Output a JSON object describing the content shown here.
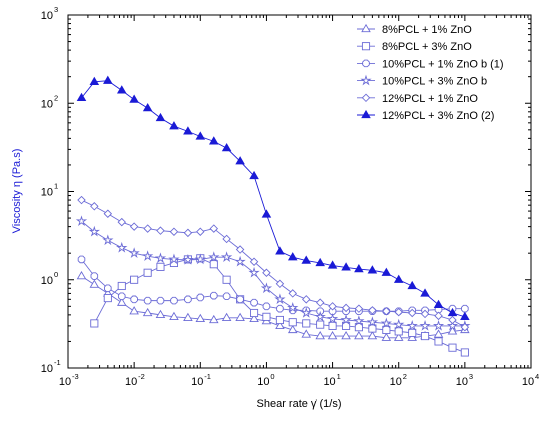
{
  "chart_data": {
    "type": "line",
    "xlabel": "Shear rate  γ̇  (1/s)",
    "ylabel": "Viscosity  η  (Pa.s)",
    "x_scale": "log",
    "y_scale": "log",
    "xlim": [
      0.001,
      10000
    ],
    "ylim": [
      0.1,
      1000
    ],
    "x_ticks": [
      {
        "value": 0.001,
        "base": "10",
        "exp": "-3"
      },
      {
        "value": 0.01,
        "base": "10",
        "exp": "-2"
      },
      {
        "value": 0.1,
        "base": "10",
        "exp": "-1"
      },
      {
        "value": 1,
        "base": "10",
        "exp": "0"
      },
      {
        "value": 10,
        "base": "10",
        "exp": "1"
      },
      {
        "value": 100,
        "base": "10",
        "exp": "2"
      },
      {
        "value": 1000,
        "base": "10",
        "exp": "3"
      },
      {
        "value": 10000,
        "base": "10",
        "exp": "4"
      }
    ],
    "y_ticks": [
      {
        "value": 0.1,
        "base": "10",
        "exp": "-1"
      },
      {
        "value": 1,
        "base": "10",
        "exp": "0"
      },
      {
        "value": 10,
        "base": "10",
        "exp": "1"
      },
      {
        "value": 100,
        "base": "10",
        "exp": "2"
      },
      {
        "value": 1000,
        "base": "10",
        "exp": "3"
      }
    ],
    "grid": false,
    "legend_position": "top-right",
    "series": [
      {
        "name": "8%PCL + 1% ZnO",
        "marker": "triangle-open",
        "color": "#6b6bd6",
        "x": [
          0.0016,
          0.0025,
          0.004,
          0.0065,
          0.01,
          0.016,
          0.025,
          0.04,
          0.065,
          0.1,
          0.16,
          0.25,
          0.4,
          0.65,
          1.0,
          1.6,
          2.5,
          4,
          6.5,
          10,
          16,
          25,
          40,
          65,
          100,
          160,
          250,
          400,
          650,
          1000
        ],
        "y": [
          1.1,
          0.88,
          0.7,
          0.55,
          0.44,
          0.42,
          0.4,
          0.38,
          0.37,
          0.36,
          0.35,
          0.37,
          0.37,
          0.36,
          0.34,
          0.3,
          0.27,
          0.24,
          0.23,
          0.23,
          0.23,
          0.23,
          0.23,
          0.22,
          0.22,
          0.22,
          0.23,
          0.24,
          0.26,
          0.27
        ]
      },
      {
        "name": "8%PCL + 3% ZnO",
        "marker": "square-open",
        "color": "#6b6bd6",
        "x": [
          0.0025,
          0.004,
          0.0065,
          0.01,
          0.016,
          0.025,
          0.04,
          0.065,
          0.1,
          0.16,
          0.25,
          0.4,
          0.65,
          1.0,
          1.6,
          2.5,
          4,
          6.5,
          10,
          16,
          25,
          40,
          65,
          100,
          160,
          250,
          400,
          650,
          1000
        ],
        "y": [
          0.32,
          0.62,
          0.85,
          1.0,
          1.2,
          1.4,
          1.55,
          1.7,
          1.75,
          1.5,
          1.0,
          0.6,
          0.42,
          0.38,
          0.35,
          0.33,
          0.32,
          0.31,
          0.3,
          0.3,
          0.29,
          0.28,
          0.27,
          0.26,
          0.25,
          0.23,
          0.2,
          0.17,
          0.15
        ]
      },
      {
        "name": "10%PCL + 1% ZnO b (1)",
        "marker": "hex-open",
        "color": "#6b6bd6",
        "x": [
          0.0016,
          0.0025,
          0.004,
          0.0065,
          0.01,
          0.016,
          0.025,
          0.04,
          0.065,
          0.1,
          0.16,
          0.25,
          0.4,
          0.65,
          1.0,
          1.6,
          2.5,
          4,
          6.5,
          10,
          16,
          25,
          40,
          65,
          100,
          160,
          250,
          400,
          650,
          1000
        ],
        "y": [
          1.7,
          1.1,
          0.8,
          0.65,
          0.6,
          0.58,
          0.58,
          0.58,
          0.6,
          0.63,
          0.66,
          0.65,
          0.6,
          0.55,
          0.5,
          0.47,
          0.45,
          0.45,
          0.44,
          0.44,
          0.44,
          0.44,
          0.44,
          0.44,
          0.44,
          0.45,
          0.45,
          0.46,
          0.47,
          0.47
        ]
      },
      {
        "name": "10%PCL + 3% ZnO b",
        "marker": "star-open",
        "color": "#6b6bd6",
        "x": [
          0.0016,
          0.0025,
          0.004,
          0.0065,
          0.01,
          0.016,
          0.025,
          0.04,
          0.065,
          0.1,
          0.16,
          0.25,
          0.4,
          0.65,
          1.0,
          1.6,
          2.5,
          4,
          6.5,
          10,
          16,
          25,
          40,
          65,
          100,
          160,
          250,
          400,
          650,
          1000
        ],
        "y": [
          4.6,
          3.5,
          2.8,
          2.3,
          2.0,
          1.85,
          1.75,
          1.7,
          1.68,
          1.7,
          1.8,
          1.8,
          1.6,
          1.2,
          0.8,
          0.6,
          0.48,
          0.42,
          0.38,
          0.36,
          0.35,
          0.34,
          0.33,
          0.32,
          0.31,
          0.3,
          0.3,
          0.3,
          0.3,
          0.3
        ]
      },
      {
        "name": "12%PCL + 1% ZnO",
        "marker": "diamond-open",
        "color": "#6b6bd6",
        "x": [
          0.0016,
          0.0025,
          0.004,
          0.0065,
          0.01,
          0.016,
          0.025,
          0.04,
          0.065,
          0.1,
          0.16,
          0.25,
          0.4,
          0.65,
          1.0,
          1.6,
          2.5,
          4,
          6.5,
          10,
          16,
          25,
          40,
          65,
          100,
          160,
          250,
          400,
          650,
          1000
        ],
        "y": [
          8.0,
          6.8,
          5.6,
          4.5,
          4.0,
          3.8,
          3.6,
          3.5,
          3.4,
          3.5,
          3.8,
          2.9,
          2.2,
          1.6,
          1.2,
          0.9,
          0.7,
          0.6,
          0.55,
          0.5,
          0.48,
          0.47,
          0.45,
          0.44,
          0.43,
          0.42,
          0.41,
          0.39,
          0.35,
          0.29
        ]
      },
      {
        "name": "12%PCL + 3% ZnO (2)",
        "marker": "triangle-filled",
        "color": "#1a1ad6",
        "x": [
          0.0016,
          0.0025,
          0.004,
          0.0065,
          0.01,
          0.016,
          0.025,
          0.04,
          0.065,
          0.1,
          0.16,
          0.25,
          0.4,
          0.65,
          1.0,
          1.6,
          2.5,
          4,
          6.5,
          10,
          16,
          25,
          40,
          65,
          100,
          160,
          250,
          400,
          650,
          1000
        ],
        "y": [
          115,
          175,
          180,
          140,
          110,
          88,
          68,
          55,
          48,
          42,
          37,
          31,
          22,
          15,
          5.5,
          2.1,
          1.8,
          1.65,
          1.55,
          1.45,
          1.38,
          1.32,
          1.28,
          1.2,
          1.0,
          0.85,
          0.7,
          0.52,
          0.42,
          0.38
        ]
      }
    ]
  }
}
